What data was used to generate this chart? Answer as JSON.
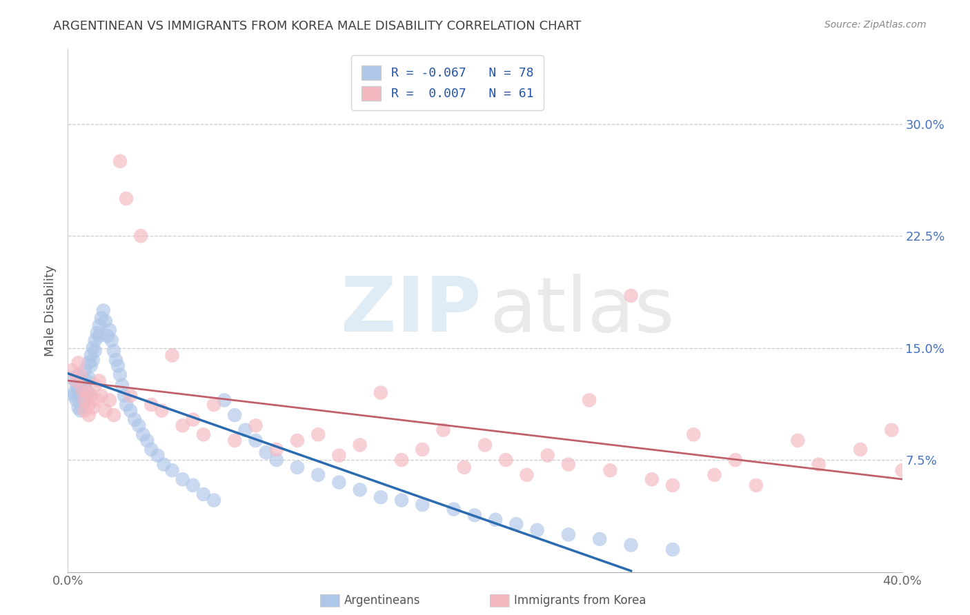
{
  "title": "ARGENTINEAN VS IMMIGRANTS FROM KOREA MALE DISABILITY CORRELATION CHART",
  "source": "Source: ZipAtlas.com",
  "ylabel": "Male Disability",
  "watermark_zip": "ZIP",
  "watermark_atlas": "atlas",
  "xlim": [
    0.0,
    0.4
  ],
  "ylim": [
    0.0,
    0.35
  ],
  "xticks": [
    0.0,
    0.1,
    0.2,
    0.3,
    0.4
  ],
  "xticklabels": [
    "0.0%",
    "",
    "",
    "",
    "40.0%"
  ],
  "yticks": [
    0.075,
    0.15,
    0.225,
    0.3
  ],
  "yticklabels_right": [
    "7.5%",
    "15.0%",
    "22.5%",
    "30.0%"
  ],
  "arg_color": "#aec6e8",
  "kor_color": "#f4b8c1",
  "arg_R": -0.067,
  "arg_N": 78,
  "kor_R": 0.007,
  "kor_N": 61,
  "trend_arg_color": "#2b6cb0",
  "trend_kor_color": "#c0606a",
  "background_color": "#ffffff",
  "grid_color": "#cccccc",
  "title_color": "#404040",
  "right_tick_color": "#4472c4",
  "legend_text_color": "#2255aa",
  "legend_label_1": "R = -0.067   N = 78",
  "legend_label_2": "R =  0.007   N = 61",
  "bottom_label_1": "Argentineans",
  "bottom_label_2": "Immigrants from Korea",
  "arg_x": [
    0.002,
    0.003,
    0.003,
    0.004,
    0.004,
    0.005,
    0.005,
    0.005,
    0.006,
    0.006,
    0.006,
    0.007,
    0.007,
    0.008,
    0.008,
    0.008,
    0.009,
    0.009,
    0.01,
    0.01,
    0.01,
    0.011,
    0.011,
    0.012,
    0.012,
    0.013,
    0.013,
    0.014,
    0.015,
    0.015,
    0.016,
    0.017,
    0.018,
    0.019,
    0.02,
    0.021,
    0.022,
    0.023,
    0.024,
    0.025,
    0.026,
    0.027,
    0.028,
    0.03,
    0.032,
    0.034,
    0.036,
    0.038,
    0.04,
    0.043,
    0.046,
    0.05,
    0.055,
    0.06,
    0.065,
    0.07,
    0.075,
    0.08,
    0.085,
    0.09,
    0.095,
    0.1,
    0.11,
    0.12,
    0.13,
    0.14,
    0.15,
    0.16,
    0.17,
    0.185,
    0.195,
    0.205,
    0.215,
    0.225,
    0.24,
    0.255,
    0.27,
    0.29
  ],
  "arg_y": [
    0.13,
    0.12,
    0.118,
    0.125,
    0.115,
    0.132,
    0.122,
    0.11,
    0.128,
    0.118,
    0.108,
    0.125,
    0.115,
    0.135,
    0.125,
    0.115,
    0.128,
    0.118,
    0.14,
    0.13,
    0.12,
    0.145,
    0.138,
    0.15,
    0.142,
    0.155,
    0.148,
    0.16,
    0.165,
    0.158,
    0.17,
    0.175,
    0.168,
    0.158,
    0.162,
    0.155,
    0.148,
    0.142,
    0.138,
    0.132,
    0.125,
    0.118,
    0.112,
    0.108,
    0.102,
    0.098,
    0.092,
    0.088,
    0.082,
    0.078,
    0.072,
    0.068,
    0.062,
    0.058,
    0.052,
    0.048,
    0.115,
    0.105,
    0.095,
    0.088,
    0.08,
    0.075,
    0.07,
    0.065,
    0.06,
    0.055,
    0.05,
    0.048,
    0.045,
    0.042,
    0.038,
    0.035,
    0.032,
    0.028,
    0.025,
    0.022,
    0.018,
    0.015
  ],
  "kor_x": [
    0.002,
    0.004,
    0.005,
    0.006,
    0.007,
    0.008,
    0.008,
    0.009,
    0.01,
    0.01,
    0.011,
    0.012,
    0.013,
    0.014,
    0.015,
    0.016,
    0.018,
    0.02,
    0.022,
    0.025,
    0.028,
    0.03,
    0.035,
    0.04,
    0.045,
    0.05,
    0.055,
    0.06,
    0.065,
    0.07,
    0.08,
    0.09,
    0.1,
    0.11,
    0.12,
    0.13,
    0.14,
    0.15,
    0.16,
    0.17,
    0.18,
    0.19,
    0.2,
    0.21,
    0.22,
    0.23,
    0.24,
    0.25,
    0.26,
    0.27,
    0.28,
    0.29,
    0.3,
    0.31,
    0.32,
    0.33,
    0.35,
    0.36,
    0.38,
    0.395,
    0.4
  ],
  "kor_y": [
    0.135,
    0.128,
    0.14,
    0.132,
    0.122,
    0.115,
    0.108,
    0.12,
    0.112,
    0.105,
    0.118,
    0.11,
    0.125,
    0.115,
    0.128,
    0.118,
    0.108,
    0.115,
    0.105,
    0.275,
    0.25,
    0.118,
    0.225,
    0.112,
    0.108,
    0.145,
    0.098,
    0.102,
    0.092,
    0.112,
    0.088,
    0.098,
    0.082,
    0.088,
    0.092,
    0.078,
    0.085,
    0.12,
    0.075,
    0.082,
    0.095,
    0.07,
    0.085,
    0.075,
    0.065,
    0.078,
    0.072,
    0.115,
    0.068,
    0.185,
    0.062,
    0.058,
    0.092,
    0.065,
    0.075,
    0.058,
    0.088,
    0.072,
    0.082,
    0.095,
    0.068
  ]
}
